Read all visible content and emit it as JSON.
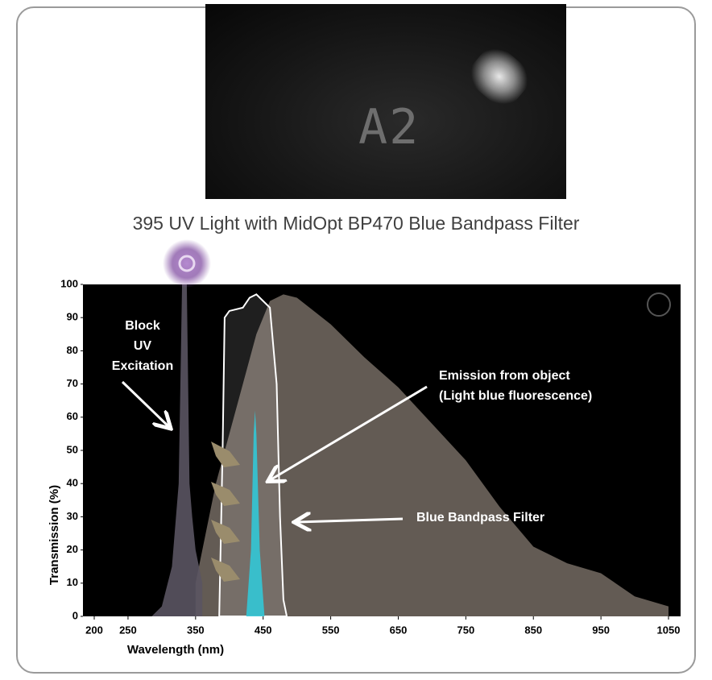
{
  "photo_label": "A2",
  "caption": "395 UV Light with MidOpt BP470 Blue Bandpass Filter",
  "chart_data": {
    "type": "area",
    "y_label": "Transmission (%)",
    "x_label": "Wavelength (nm)",
    "annotations": [
      "Block",
      "UV",
      "Excitation",
      "Emission from object",
      "(Light blue fluorescence)",
      "Blue Bandpass Filter"
    ],
    "xlim": [
      200,
      1050
    ],
    "ylim": [
      0,
      100
    ],
    "xticks": [
      200,
      250,
      350,
      450,
      550,
      650,
      750,
      850,
      950,
      1050
    ],
    "yticks": [
      0,
      10,
      20,
      30,
      40,
      50,
      60,
      70,
      80,
      90,
      100
    ],
    "series": [
      {
        "color": "#6e655d",
        "x": [
          350,
          380,
          400,
          420,
          440,
          460,
          480,
          500,
          550,
          600,
          650,
          700,
          750,
          800,
          850,
          900,
          950,
          1000,
          1050
        ],
        "values": [
          10,
          40,
          55,
          70,
          85,
          95,
          97,
          96,
          88,
          78,
          69,
          58,
          47,
          33,
          21,
          16,
          13,
          6,
          3
        ]
      },
      {
        "color": "#5a5462",
        "x": [
          285,
          300,
          315,
          325,
          330,
          333,
          337,
          341,
          345,
          350,
          360
        ],
        "values": [
          0,
          3,
          15,
          40,
          100,
          100,
          100,
          40,
          30,
          20,
          10
        ]
      },
      {
        "color": "#ffffff",
        "x": [
          385,
          390,
          393,
          400,
          420,
          430,
          440,
          450,
          460,
          470,
          475,
          480,
          485
        ],
        "values": [
          0,
          50,
          90,
          92,
          93,
          96,
          97,
          95,
          93,
          70,
          30,
          5,
          0
        ]
      },
      {
        "color": "#33c6d6",
        "x": [
          425,
          432,
          436,
          438,
          440,
          445,
          452
        ],
        "values": [
          0,
          20,
          55,
          62,
          55,
          20,
          0
        ]
      }
    ]
  }
}
